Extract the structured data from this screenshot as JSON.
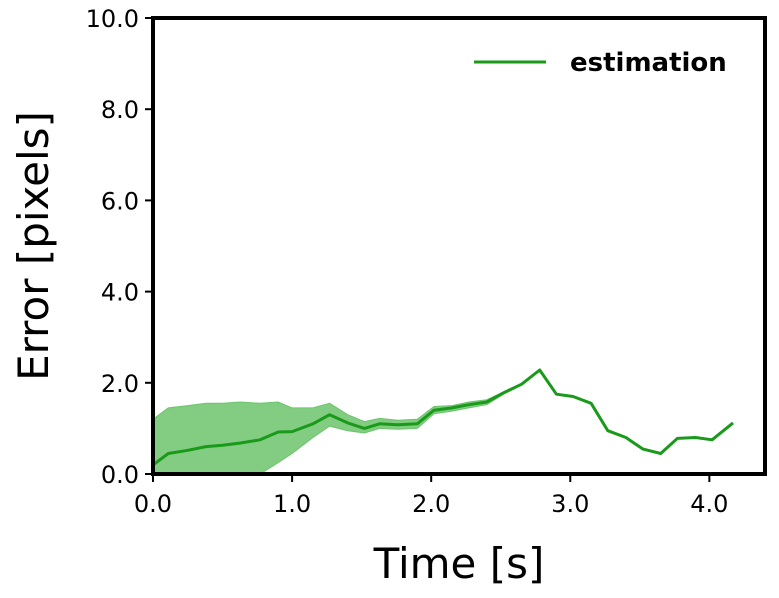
{
  "chart_data": {
    "type": "line",
    "xlabel": "Time [s]",
    "ylabel": "Error [pixels]",
    "xlim": [
      0.0,
      4.4
    ],
    "ylim": [
      0.0,
      10.0
    ],
    "xticks": [
      "0.0",
      "1.0",
      "2.0",
      "3.0",
      "4.0"
    ],
    "yticks": [
      "0.0",
      "2.0",
      "4.0",
      "6.0",
      "8.0",
      "10.0"
    ],
    "grid": false,
    "legend_position": "top-right",
    "series": [
      {
        "name": "estimation",
        "color": "#1a9a1a",
        "band_color": "#6cc46c",
        "x": [
          0.0,
          0.11,
          0.25,
          0.38,
          0.5,
          0.63,
          0.77,
          0.9,
          1.0,
          1.15,
          1.27,
          1.4,
          1.52,
          1.63,
          1.76,
          1.9,
          2.02,
          2.15,
          2.27,
          2.4,
          2.52,
          2.65,
          2.78,
          2.9,
          3.02,
          3.15,
          3.27,
          3.4,
          3.52,
          3.65,
          3.77,
          3.9,
          4.02,
          4.17
        ],
        "values": [
          0.2,
          0.45,
          0.52,
          0.6,
          0.63,
          0.68,
          0.75,
          0.92,
          0.93,
          1.1,
          1.3,
          1.12,
          1.0,
          1.1,
          1.08,
          1.1,
          1.4,
          1.45,
          1.52,
          1.58,
          1.78,
          1.97,
          2.28,
          1.75,
          1.7,
          1.55,
          0.95,
          0.8,
          0.55,
          0.45,
          0.78,
          0.8,
          0.75,
          1.12
        ],
        "upper": [
          1.2,
          1.45,
          1.5,
          1.55,
          1.55,
          1.58,
          1.55,
          1.58,
          1.45,
          1.45,
          1.55,
          1.3,
          1.15,
          1.22,
          1.18,
          1.2,
          1.48,
          1.5,
          1.58,
          1.63,
          1.8,
          1.98,
          2.28,
          1.75,
          1.7,
          1.55,
          0.95,
          0.8,
          0.55,
          0.45,
          0.78,
          0.8,
          0.75,
          1.12
        ],
        "lower": [
          0.0,
          0.0,
          0.0,
          0.0,
          0.0,
          0.0,
          0.0,
          0.25,
          0.45,
          0.8,
          1.05,
          0.95,
          0.9,
          1.0,
          0.98,
          1.0,
          1.32,
          1.38,
          1.45,
          1.52,
          1.75,
          1.95,
          2.28,
          1.75,
          1.7,
          1.55,
          0.95,
          0.8,
          0.55,
          0.45,
          0.78,
          0.8,
          0.75,
          1.12
        ]
      }
    ]
  }
}
